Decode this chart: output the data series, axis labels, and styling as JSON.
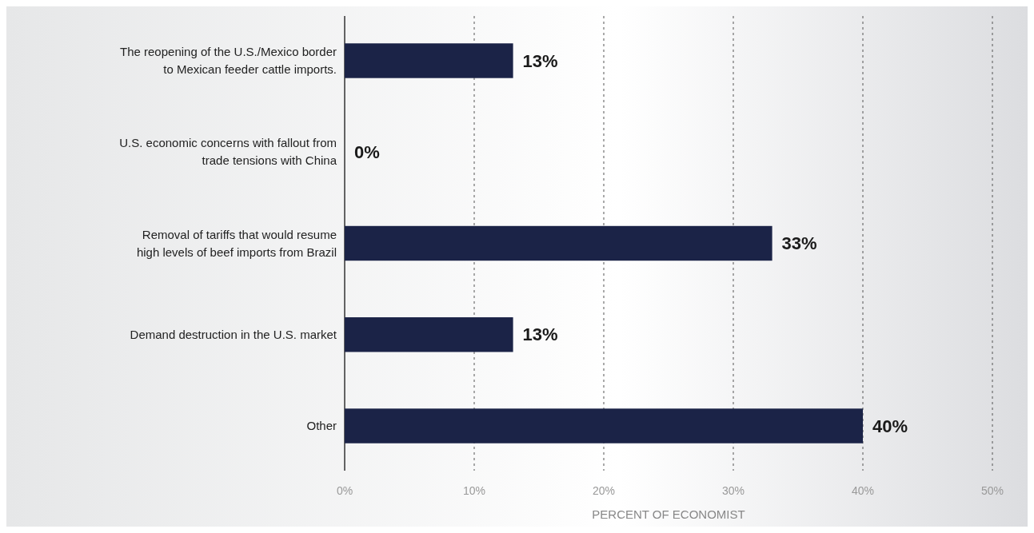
{
  "chart_data": {
    "type": "bar",
    "orientation": "horizontal",
    "xlabel": "PERCENT OF ECONOMIST",
    "categories": [
      "The reopening of the U.S./Mexico border to Mexican feeder cattle imports.",
      "U.S. economic concerns with fallout from trade tensions with China",
      "Removal of tariffs that would resume high levels of beef imports from Brazil",
      "Demand destruction in the U.S. market",
      "Other"
    ],
    "values": [
      13,
      0,
      33,
      13,
      40
    ],
    "color": "#1b2347",
    "xlim": [
      0,
      50
    ],
    "xticks": [
      {
        "value": 0,
        "label": "0%"
      },
      {
        "value": 10,
        "label": "10%"
      },
      {
        "value": 20,
        "label": "20%"
      },
      {
        "value": 30,
        "label": "30%"
      },
      {
        "value": 40,
        "label": "40%"
      },
      {
        "value": 50,
        "label": "50%"
      }
    ],
    "grid": "x",
    "data_labels": true,
    "value_labels": [
      "13%",
      "0%",
      "33%",
      "13%",
      "40%"
    ]
  }
}
